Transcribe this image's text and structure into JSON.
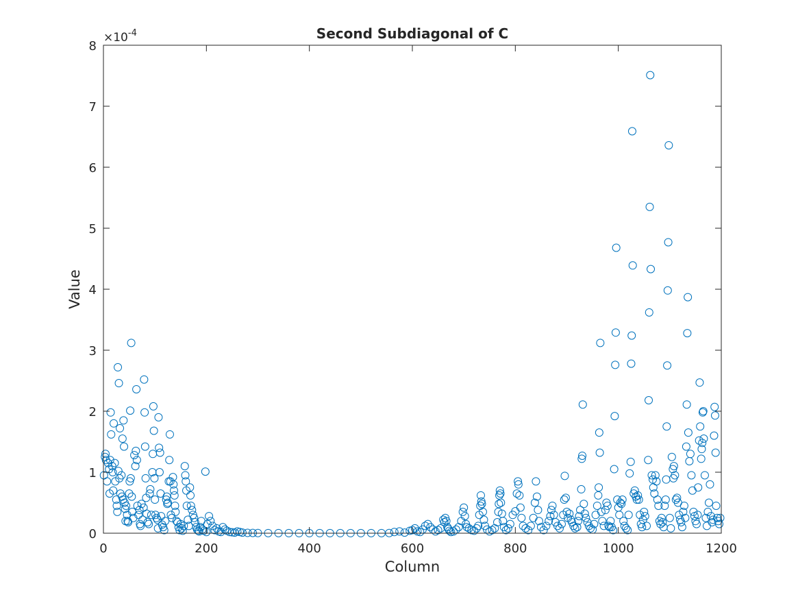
{
  "chart_data": {
    "type": "scatter",
    "title": "Second Subdiagonal of C",
    "xlabel": "Column",
    "ylabel": "Value",
    "xlim": [
      0,
      1200
    ],
    "ylim": [
      0,
      8
    ],
    "y_exponent_label": "×10",
    "y_exponent_power": "-4",
    "xticks": [
      "0",
      "200",
      "400",
      "600",
      "800",
      "1000",
      "1200"
    ],
    "yticks": [
      "0",
      "1",
      "2",
      "3",
      "4",
      "5",
      "6",
      "7",
      "8"
    ],
    "xtick_values": [
      0,
      200,
      400,
      600,
      800,
      1000,
      1200
    ],
    "ytick_values": [
      0,
      1,
      2,
      3,
      4,
      5,
      6,
      7,
      8
    ],
    "grid": false,
    "legend": "none",
    "marker": "open-circle",
    "series_color": "#0072BD",
    "axes_color": "#262626",
    "points": [
      [
        1,
        0.95
      ],
      [
        3,
        1.25
      ],
      [
        4,
        1.3
      ],
      [
        5,
        1.2
      ],
      [
        7,
        0.85
      ],
      [
        9,
        1.15
      ],
      [
        11,
        1.05
      ],
      [
        12,
        0.65
      ],
      [
        13,
        1.2
      ],
      [
        14,
        1.98
      ],
      [
        15,
        1.62
      ],
      [
        17,
        1.1
      ],
      [
        18,
        1.0
      ],
      [
        19,
        0.7
      ],
      [
        20,
        1.8
      ],
      [
        22,
        1.15
      ],
      [
        23,
        0.85
      ],
      [
        25,
        0.55
      ],
      [
        26,
        0.45
      ],
      [
        27,
        0.35
      ],
      [
        28,
        2.72
      ],
      [
        29,
        1.02
      ],
      [
        30,
        2.46
      ],
      [
        31,
        0.9
      ],
      [
        32,
        1.72
      ],
      [
        33,
        0.65
      ],
      [
        35,
        0.95
      ],
      [
        36,
        0.6
      ],
      [
        37,
        1.55
      ],
      [
        38,
        0.55
      ],
      [
        39,
        1.85
      ],
      [
        40,
        1.42
      ],
      [
        41,
        0.5
      ],
      [
        42,
        0.4
      ],
      [
        43,
        0.2
      ],
      [
        44,
        0.45
      ],
      [
        46,
        0.3
      ],
      [
        47,
        0.2
      ],
      [
        48,
        0.18
      ],
      [
        50,
        0.65
      ],
      [
        51,
        0.85
      ],
      [
        52,
        2.01
      ],
      [
        53,
        0.9
      ],
      [
        54,
        3.12
      ],
      [
        55,
        0.6
      ],
      [
        56,
        0.35
      ],
      [
        58,
        0.25
      ],
      [
        60,
        1.28
      ],
      [
        62,
        1.1
      ],
      [
        63,
        1.35
      ],
      [
        64,
        2.36
      ],
      [
        65,
        1.2
      ],
      [
        66,
        0.45
      ],
      [
        68,
        0.3
      ],
      [
        70,
        0.38
      ],
      [
        71,
        0.15
      ],
      [
        72,
        0.12
      ],
      [
        74,
        0.48
      ],
      [
        76,
        0.22
      ],
      [
        78,
        0.42
      ],
      [
        79,
        2.52
      ],
      [
        80,
        1.98
      ],
      [
        81,
        1.42
      ],
      [
        82,
        0.9
      ],
      [
        83,
        0.58
      ],
      [
        84,
        0.32
      ],
      [
        86,
        0.18
      ],
      [
        88,
        0.15
      ],
      [
        90,
        0.65
      ],
      [
        91,
        0.72
      ],
      [
        93,
        0.3
      ],
      [
        95,
        1.0
      ],
      [
        96,
        1.3
      ],
      [
        97,
        2.08
      ],
      [
        98,
        1.68
      ],
      [
        99,
        0.9
      ],
      [
        100,
        0.55
      ],
      [
        101,
        0.3
      ],
      [
        103,
        0.25
      ],
      [
        105,
        0.22
      ],
      [
        106,
        0.08
      ],
      [
        107,
        1.9
      ],
      [
        108,
        1.4
      ],
      [
        109,
        1.0
      ],
      [
        110,
        1.32
      ],
      [
        111,
        0.65
      ],
      [
        112,
        0.28
      ],
      [
        114,
        0.14
      ],
      [
        116,
        0.1
      ],
      [
        118,
        0.05
      ],
      [
        120,
        0.2
      ],
      [
        122,
        0.55
      ],
      [
        123,
        0.6
      ],
      [
        124,
        0.48
      ],
      [
        125,
        0.5
      ],
      [
        127,
        0.85
      ],
      [
        128,
        1.2
      ],
      [
        129,
        1.62
      ],
      [
        130,
        0.85
      ],
      [
        131,
        0.3
      ],
      [
        133,
        0.25
      ],
      [
        135,
        0.92
      ],
      [
        136,
        0.8
      ],
      [
        137,
        0.7
      ],
      [
        138,
        0.62
      ],
      [
        139,
        0.45
      ],
      [
        140,
        0.35
      ],
      [
        142,
        0.2
      ],
      [
        144,
        0.18
      ],
      [
        146,
        0.1
      ],
      [
        148,
        0.05
      ],
      [
        150,
        0.15
      ],
      [
        152,
        0.08
      ],
      [
        154,
        0.04
      ],
      [
        156,
        0.12
      ],
      [
        158,
        1.1
      ],
      [
        159,
        0.95
      ],
      [
        160,
        0.85
      ],
      [
        161,
        0.7
      ],
      [
        162,
        0.45
      ],
      [
        164,
        0.22
      ],
      [
        166,
        0.12
      ],
      [
        168,
        0.75
      ],
      [
        169,
        0.62
      ],
      [
        170,
        0.45
      ],
      [
        172,
        0.38
      ],
      [
        174,
        0.3
      ],
      [
        176,
        0.25
      ],
      [
        178,
        0.18
      ],
      [
        180,
        0.1
      ],
      [
        182,
        0.06
      ],
      [
        184,
        0.04
      ],
      [
        186,
        0.03
      ],
      [
        188,
        0.1
      ],
      [
        190,
        0.2
      ],
      [
        192,
        0.06
      ],
      [
        195,
        0.04
      ],
      [
        198,
        1.01
      ],
      [
        200,
        0.02
      ],
      [
        202,
        0.15
      ],
      [
        205,
        0.28
      ],
      [
        208,
        0.2
      ],
      [
        212,
        0.12
      ],
      [
        216,
        0.05
      ],
      [
        220,
        0.08
      ],
      [
        224,
        0.03
      ],
      [
        228,
        0.02
      ],
      [
        232,
        0.1
      ],
      [
        236,
        0.06
      ],
      [
        240,
        0.04
      ],
      [
        245,
        0.02
      ],
      [
        250,
        0.015
      ],
      [
        255,
        0.01
      ],
      [
        260,
        0.03
      ],
      [
        265,
        0.02
      ],
      [
        270,
        0.01
      ],
      [
        280,
        0.005
      ],
      [
        290,
        0.004
      ],
      [
        300,
        0.003
      ],
      [
        320,
        0.002
      ],
      [
        340,
        0.002
      ],
      [
        360,
        0.001
      ],
      [
        380,
        0.001
      ],
      [
        400,
        0.001
      ],
      [
        420,
        0.001
      ],
      [
        440,
        0.001
      ],
      [
        460,
        0.001
      ],
      [
        480,
        0.001
      ],
      [
        500,
        0.001
      ],
      [
        520,
        0.002
      ],
      [
        540,
        0.002
      ],
      [
        555,
        0.003
      ],
      [
        565,
        0.02
      ],
      [
        575,
        0.03
      ],
      [
        585,
        0.01
      ],
      [
        595,
        0.04
      ],
      [
        600,
        0.05
      ],
      [
        605,
        0.08
      ],
      [
        610,
        0.03
      ],
      [
        615,
        0.02
      ],
      [
        620,
        0.06
      ],
      [
        625,
        0.12
      ],
      [
        630,
        0.15
      ],
      [
        635,
        0.1
      ],
      [
        640,
        0.06
      ],
      [
        645,
        0.03
      ],
      [
        650,
        0.05
      ],
      [
        655,
        0.08
      ],
      [
        660,
        0.22
      ],
      [
        662,
        0.18
      ],
      [
        664,
        0.25
      ],
      [
        666,
        0.2
      ],
      [
        668,
        0.1
      ],
      [
        670,
        0.07
      ],
      [
        672,
        0.04
      ],
      [
        675,
        0.02
      ],
      [
        680,
        0.03
      ],
      [
        685,
        0.06
      ],
      [
        690,
        0.1
      ],
      [
        695,
        0.2
      ],
      [
        698,
        0.35
      ],
      [
        700,
        0.42
      ],
      [
        702,
        0.28
      ],
      [
        704,
        0.15
      ],
      [
        706,
        0.1
      ],
      [
        710,
        0.08
      ],
      [
        715,
        0.05
      ],
      [
        720,
        0.04
      ],
      [
        725,
        0.08
      ],
      [
        728,
        0.12
      ],
      [
        730,
        0.3
      ],
      [
        732,
        0.45
      ],
      [
        733,
        0.62
      ],
      [
        734,
        0.52
      ],
      [
        735,
        0.48
      ],
      [
        737,
        0.35
      ],
      [
        739,
        0.22
      ],
      [
        741,
        0.12
      ],
      [
        745,
        0.06
      ],
      [
        750,
        0.03
      ],
      [
        755,
        0.05
      ],
      [
        760,
        0.08
      ],
      [
        765,
        0.18
      ],
      [
        767,
        0.35
      ],
      [
        768,
        0.48
      ],
      [
        769,
        0.62
      ],
      [
        770,
        0.7
      ],
      [
        771,
        0.65
      ],
      [
        772,
        0.5
      ],
      [
        774,
        0.32
      ],
      [
        776,
        0.2
      ],
      [
        778,
        0.1
      ],
      [
        782,
        0.05
      ],
      [
        786,
        0.08
      ],
      [
        790,
        0.15
      ],
      [
        795,
        0.3
      ],
      [
        800,
        0.36
      ],
      [
        803,
        0.65
      ],
      [
        805,
        0.85
      ],
      [
        806,
        0.8
      ],
      [
        808,
        0.62
      ],
      [
        810,
        0.42
      ],
      [
        812,
        0.25
      ],
      [
        815,
        0.12
      ],
      [
        820,
        0.08
      ],
      [
        825,
        0.05
      ],
      [
        830,
        0.12
      ],
      [
        835,
        0.25
      ],
      [
        838,
        0.5
      ],
      [
        840,
        0.85
      ],
      [
        842,
        0.6
      ],
      [
        844,
        0.38
      ],
      [
        846,
        0.2
      ],
      [
        850,
        0.1
      ],
      [
        855,
        0.05
      ],
      [
        860,
        0.12
      ],
      [
        865,
        0.2
      ],
      [
        868,
        0.28
      ],
      [
        870,
        0.38
      ],
      [
        872,
        0.45
      ],
      [
        875,
        0.3
      ],
      [
        878,
        0.18
      ],
      [
        882,
        0.12
      ],
      [
        886,
        0.08
      ],
      [
        890,
        0.15
      ],
      [
        893,
        0.3
      ],
      [
        895,
        0.55
      ],
      [
        896,
        0.94
      ],
      [
        898,
        0.58
      ],
      [
        900,
        0.35
      ],
      [
        902,
        0.25
      ],
      [
        905,
        0.32
      ],
      [
        908,
        0.22
      ],
      [
        910,
        0.18
      ],
      [
        913,
        0.12
      ],
      [
        916,
        0.08
      ],
      [
        920,
        0.1
      ],
      [
        922,
        0.2
      ],
      [
        924,
        0.28
      ],
      [
        926,
        0.38
      ],
      [
        928,
        0.72
      ],
      [
        929,
        1.22
      ],
      [
        930,
        1.27
      ],
      [
        931,
        2.11
      ],
      [
        933,
        0.48
      ],
      [
        935,
        0.32
      ],
      [
        937,
        0.25
      ],
      [
        940,
        0.18
      ],
      [
        943,
        0.12
      ],
      [
        946,
        0.08
      ],
      [
        950,
        0.06
      ],
      [
        953,
        0.15
      ],
      [
        956,
        0.3
      ],
      [
        959,
        0.45
      ],
      [
        961,
        0.62
      ],
      [
        962,
        0.75
      ],
      [
        963,
        1.65
      ],
      [
        964,
        1.32
      ],
      [
        965,
        3.12
      ],
      [
        967,
        0.35
      ],
      [
        969,
        0.2
      ],
      [
        972,
        0.12
      ],
      [
        975,
        0.38
      ],
      [
        977,
        0.5
      ],
      [
        979,
        0.45
      ],
      [
        981,
        0.12
      ],
      [
        983,
        0.1
      ],
      [
        985,
        0.2
      ],
      [
        987,
        0.1
      ],
      [
        990,
        0.05
      ],
      [
        992,
        1.05
      ],
      [
        993,
        1.92
      ],
      [
        994,
        2.76
      ],
      [
        995,
        3.29
      ],
      [
        996,
        4.68
      ],
      [
        998,
        0.55
      ],
      [
        1000,
        0.42
      ],
      [
        1002,
        0.3
      ],
      [
        1004,
        0.5
      ],
      [
        1006,
        0.48
      ],
      [
        1008,
        0.55
      ],
      [
        1010,
        0.2
      ],
      [
        1012,
        0.12
      ],
      [
        1015,
        0.08
      ],
      [
        1018,
        0.05
      ],
      [
        1020,
        0.3
      ],
      [
        1022,
        0.98
      ],
      [
        1024,
        1.17
      ],
      [
        1025,
        2.78
      ],
      [
        1026,
        3.24
      ],
      [
        1027,
        6.59
      ],
      [
        1028,
        4.39
      ],
      [
        1030,
        0.65
      ],
      [
        1032,
        0.7
      ],
      [
        1034,
        0.6
      ],
      [
        1036,
        0.55
      ],
      [
        1038,
        0.62
      ],
      [
        1040,
        0.55
      ],
      [
        1042,
        0.3
      ],
      [
        1044,
        0.15
      ],
      [
        1046,
        0.1
      ],
      [
        1048,
        0.22
      ],
      [
        1050,
        0.35
      ],
      [
        1052,
        0.28
      ],
      [
        1055,
        0.12
      ],
      [
        1058,
        1.2
      ],
      [
        1059,
        2.18
      ],
      [
        1060,
        3.62
      ],
      [
        1061,
        5.35
      ],
      [
        1062,
        7.51
      ],
      [
        1063,
        4.33
      ],
      [
        1065,
        0.95
      ],
      [
        1067,
        0.88
      ],
      [
        1068,
        0.75
      ],
      [
        1070,
        0.65
      ],
      [
        1072,
        0.95
      ],
      [
        1074,
        0.85
      ],
      [
        1076,
        0.55
      ],
      [
        1078,
        0.45
      ],
      [
        1080,
        0.2
      ],
      [
        1082,
        0.15
      ],
      [
        1084,
        0.25
      ],
      [
        1086,
        0.18
      ],
      [
        1088,
        0.1
      ],
      [
        1090,
        0.45
      ],
      [
        1092,
        0.55
      ],
      [
        1093,
        0.88
      ],
      [
        1094,
        1.75
      ],
      [
        1095,
        2.75
      ],
      [
        1096,
        3.98
      ],
      [
        1097,
        4.77
      ],
      [
        1098,
        6.36
      ],
      [
        1100,
        0.25
      ],
      [
        1102,
        0.08
      ],
      [
        1104,
        1.25
      ],
      [
        1106,
        1.05
      ],
      [
        1107,
        0.9
      ],
      [
        1108,
        1.1
      ],
      [
        1110,
        0.95
      ],
      [
        1112,
        0.55
      ],
      [
        1114,
        0.58
      ],
      [
        1116,
        0.5
      ],
      [
        1118,
        0.3
      ],
      [
        1120,
        0.22
      ],
      [
        1122,
        0.18
      ],
      [
        1124,
        0.1
      ],
      [
        1126,
        0.35
      ],
      [
        1128,
        0.45
      ],
      [
        1130,
        0.25
      ],
      [
        1132,
        1.42
      ],
      [
        1133,
        2.11
      ],
      [
        1134,
        3.28
      ],
      [
        1135,
        3.87
      ],
      [
        1136,
        1.65
      ],
      [
        1138,
        1.18
      ],
      [
        1140,
        1.3
      ],
      [
        1142,
        0.95
      ],
      [
        1144,
        0.7
      ],
      [
        1146,
        0.35
      ],
      [
        1148,
        0.28
      ],
      [
        1150,
        0.2
      ],
      [
        1152,
        0.15
      ],
      [
        1154,
        0.3
      ],
      [
        1155,
        0.75
      ],
      [
        1157,
        1.52
      ],
      [
        1158,
        2.47
      ],
      [
        1159,
        1.75
      ],
      [
        1161,
        1.22
      ],
      [
        1162,
        1.38
      ],
      [
        1163,
        1.48
      ],
      [
        1164,
        1.98
      ],
      [
        1165,
        2.0
      ],
      [
        1166,
        1.55
      ],
      [
        1168,
        0.95
      ],
      [
        1170,
        0.25
      ],
      [
        1172,
        0.12
      ],
      [
        1174,
        0.35
      ],
      [
        1176,
        0.5
      ],
      [
        1178,
        0.8
      ],
      [
        1180,
        0.28
      ],
      [
        1182,
        0.18
      ],
      [
        1184,
        0.22
      ],
      [
        1186,
        1.6
      ],
      [
        1187,
        2.07
      ],
      [
        1188,
        1.93
      ],
      [
        1189,
        1.32
      ],
      [
        1190,
        0.45
      ],
      [
        1192,
        0.25
      ],
      [
        1194,
        0.2
      ],
      [
        1196,
        0.15
      ],
      [
        1198,
        0.25
      ]
    ]
  }
}
